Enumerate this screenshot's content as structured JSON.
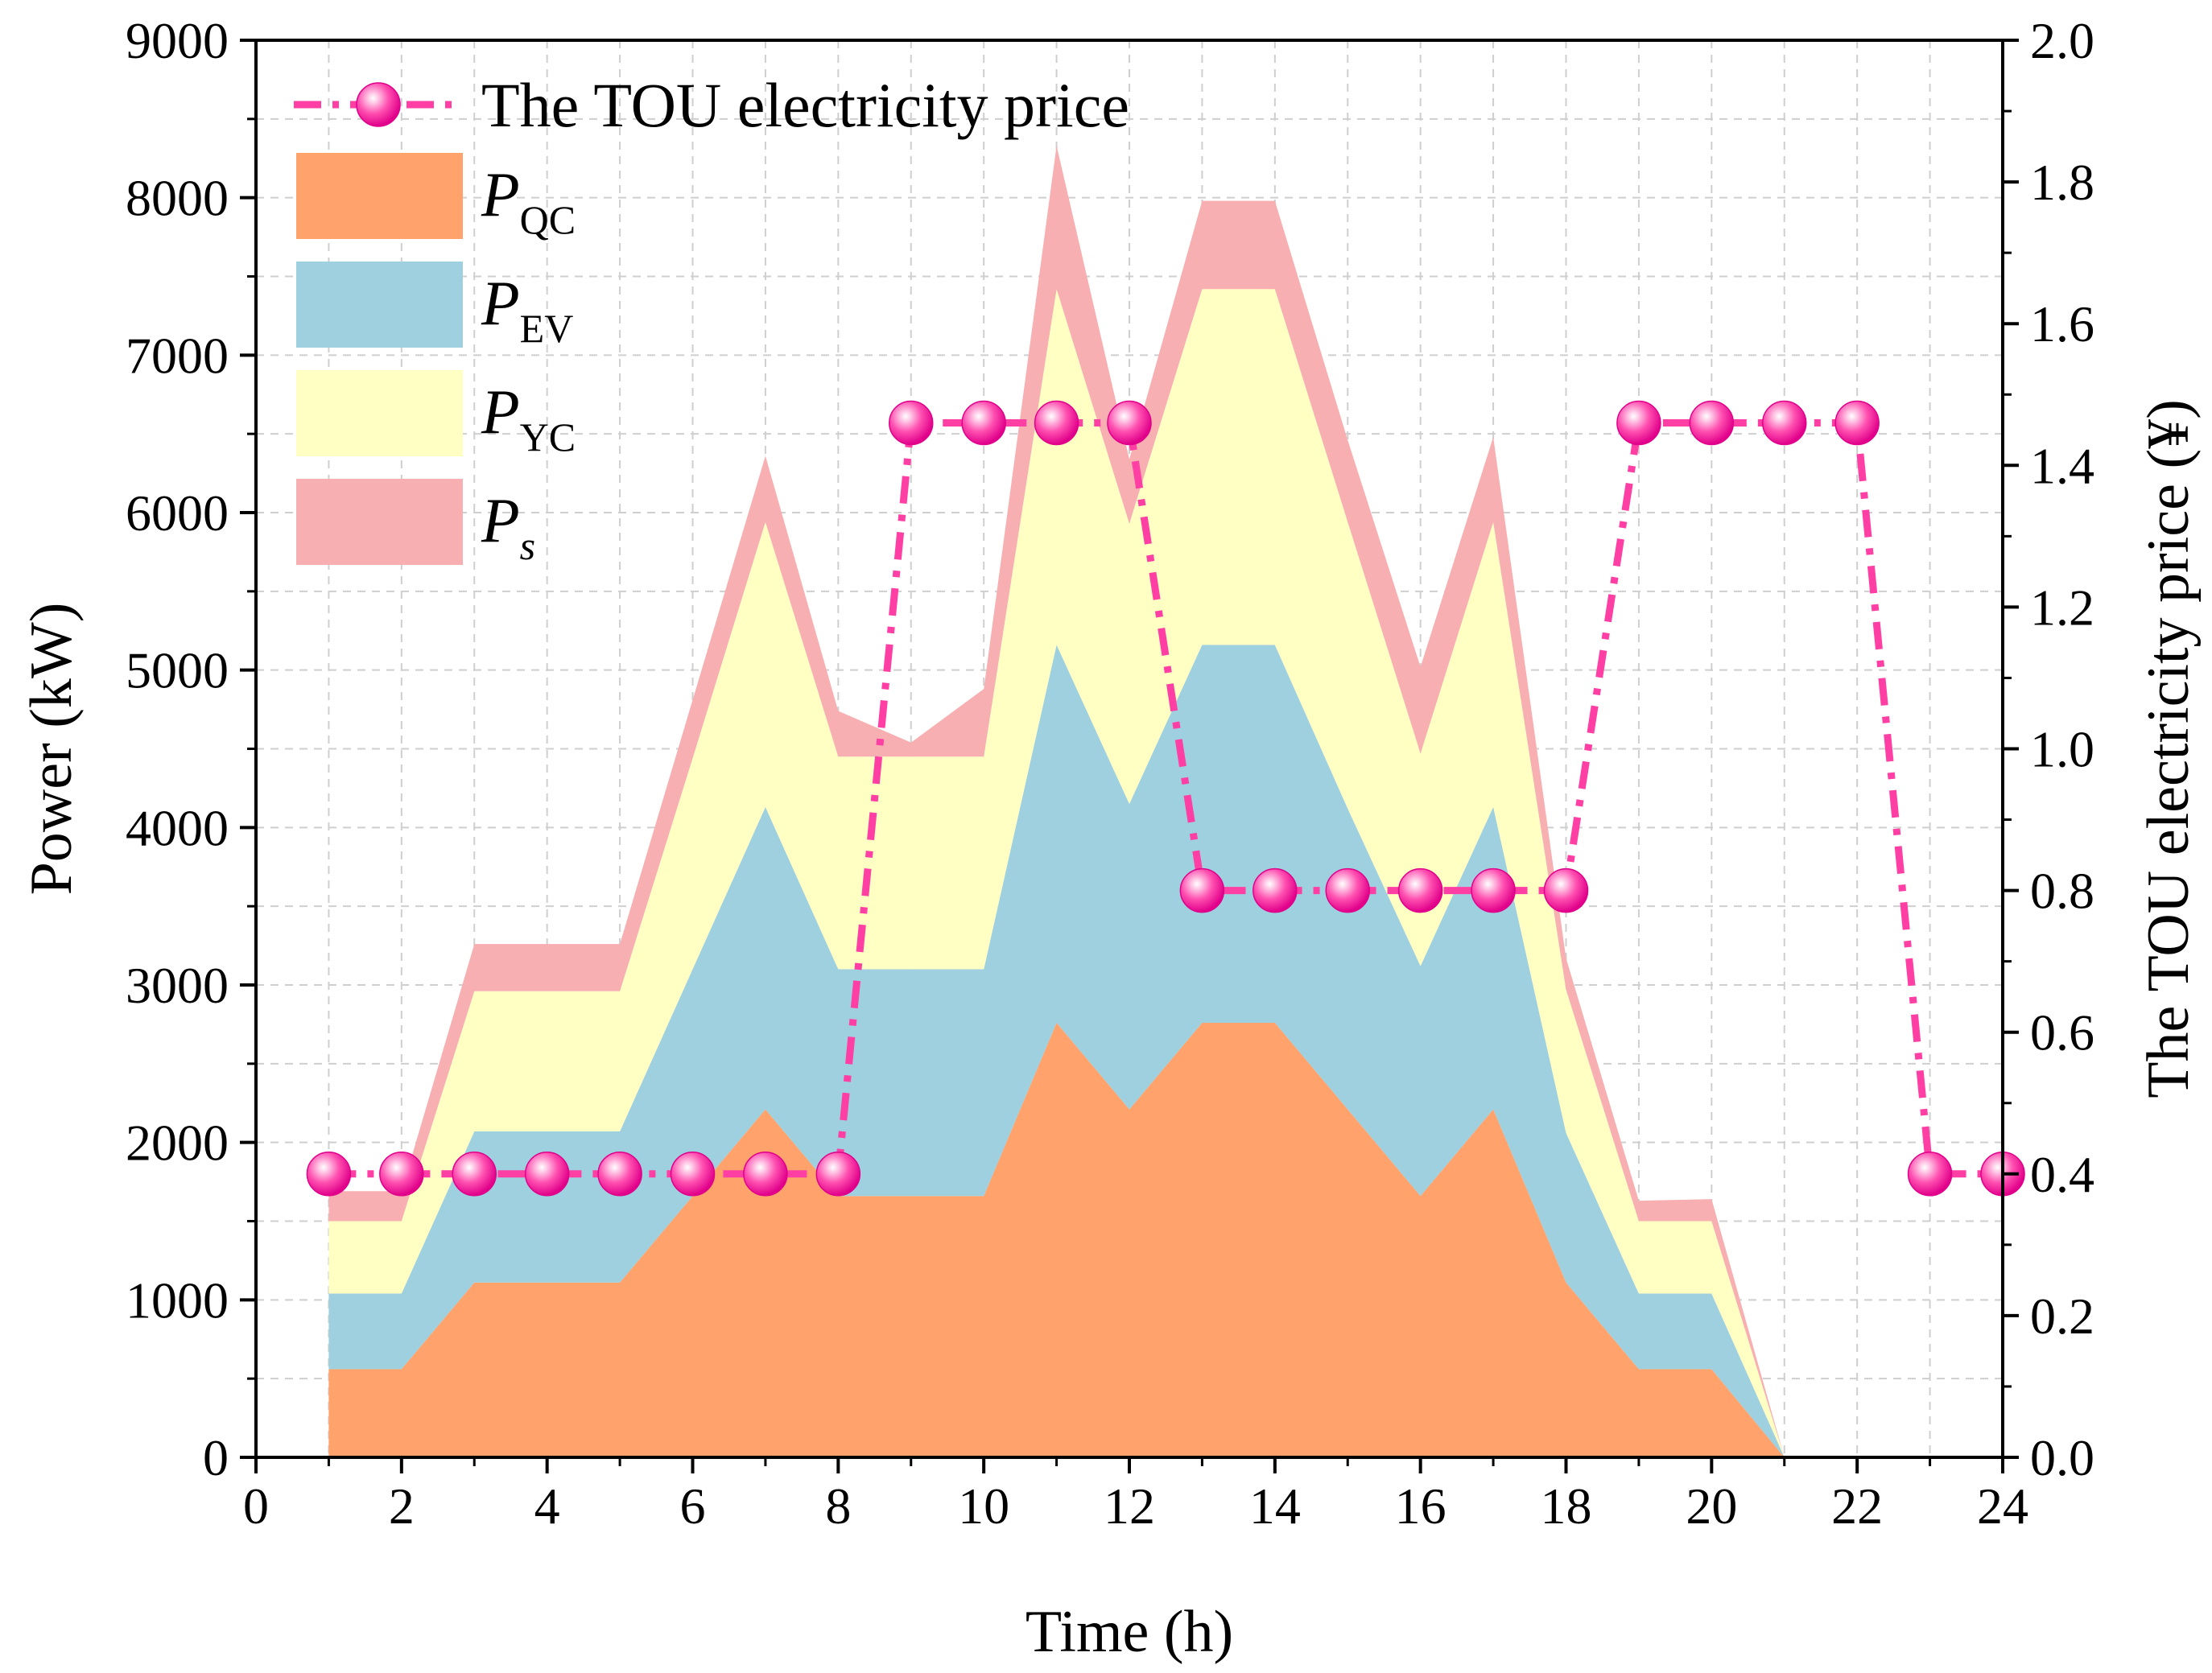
{
  "chart_data": {
    "type": "area",
    "stacked": true,
    "xlabel": "Time (h)",
    "ylabel_left": "Power (kW)",
    "ylabel_right": "The TOU electricity price (¥)",
    "xlim": [
      0,
      24
    ],
    "ylim_left": [
      0,
      9000
    ],
    "ylim_right": [
      0,
      2.0
    ],
    "grid": true,
    "legend_position": "top-left",
    "x_ticks": [
      "0",
      "2",
      "4",
      "6",
      "8",
      "10",
      "12",
      "14",
      "16",
      "18",
      "20",
      "22",
      "24"
    ],
    "y_ticks_left": [
      "0",
      "1000",
      "2000",
      "3000",
      "4000",
      "5000",
      "6000",
      "7000",
      "8000",
      "9000"
    ],
    "y_ticks_right": [
      "0.0",
      "0.2",
      "0.4",
      "0.6",
      "0.8",
      "1.0",
      "1.2",
      "1.4",
      "1.6",
      "1.8",
      "2.0"
    ],
    "x": [
      1,
      2,
      3,
      4,
      5,
      6,
      7,
      8,
      9,
      10,
      11,
      12,
      13,
      14,
      15,
      16,
      17,
      18,
      19,
      20,
      21
    ],
    "series": [
      {
        "name": "P",
        "subscript": "QC",
        "italic_sub": false,
        "color": "#FFA26B",
        "values": [
          560,
          560,
          1110,
          1110,
          1110,
          1660,
          2210,
          1660,
          1660,
          1660,
          2760,
          2210,
          2760,
          2760,
          2210,
          1660,
          2210,
          1110,
          560,
          560,
          0
        ]
      },
      {
        "name": "P",
        "subscript": "EV",
        "italic_sub": false,
        "color": "#9FD0DF",
        "values": [
          480,
          480,
          960,
          960,
          960,
          1440,
          1920,
          1440,
          1440,
          1440,
          2400,
          1940,
          2400,
          2400,
          1910,
          1460,
          1920,
          950,
          480,
          480,
          0
        ]
      },
      {
        "name": "P",
        "subscript": "YC",
        "italic_sub": false,
        "color": "#FFFFC4",
        "values": [
          460,
          460,
          890,
          890,
          890,
          1340,
          1810,
          1350,
          1350,
          1350,
          2260,
          1780,
          2260,
          2260,
          1820,
          1350,
          1810,
          910,
          460,
          460,
          0
        ]
      },
      {
        "name": "P",
        "subscript": "s",
        "italic_sub": true,
        "color": "#F8AFB1",
        "values": [
          190,
          190,
          300,
          300,
          300,
          370,
          420,
          290,
          90,
          430,
          910,
          410,
          560,
          560,
          520,
          550,
          540,
          200,
          130,
          140,
          0
        ]
      }
    ],
    "price_series": {
      "name": "The TOU electricity price",
      "color": "#FF3FA3",
      "x": [
        1,
        2,
        3,
        4,
        5,
        6,
        7,
        8,
        9,
        10,
        11,
        12,
        13,
        14,
        15,
        16,
        17,
        18,
        19,
        20,
        21,
        22,
        23,
        24
      ],
      "values": [
        0.4,
        0.4,
        0.4,
        0.4,
        0.4,
        0.4,
        0.4,
        0.4,
        1.46,
        1.46,
        1.46,
        1.46,
        0.8,
        0.8,
        0.8,
        0.8,
        0.8,
        0.8,
        1.46,
        1.46,
        1.46,
        1.46,
        0.4,
        0.4
      ]
    }
  }
}
